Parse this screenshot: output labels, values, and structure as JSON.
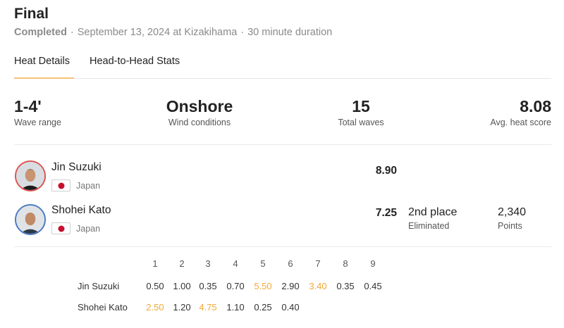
{
  "header": {
    "title": "Final",
    "status": "Completed",
    "separator": "·",
    "date_location": "September 13, 2024 at Kizakihama",
    "duration": "30 minute duration"
  },
  "tabs": [
    {
      "label": "Heat Details",
      "active": true
    },
    {
      "label": "Head-to-Head Stats",
      "active": false
    }
  ],
  "stats": [
    {
      "value": "1-4'",
      "label": "Wave range"
    },
    {
      "value": "Onshore",
      "label": "Wind conditions"
    },
    {
      "value": "15",
      "label": "Total waves"
    },
    {
      "value": "8.08",
      "label": "Avg. heat score"
    }
  ],
  "competitors": [
    {
      "name": "Jin Suzuki",
      "country": "Japan",
      "flag_icon": "japan-flag-icon",
      "score": "8.90",
      "ring_color": "#d9534f"
    },
    {
      "name": "Shohei Kato",
      "country": "Japan",
      "flag_icon": "japan-flag-icon",
      "score": "7.25",
      "place": "2nd place",
      "result": "Eliminated",
      "points": "2,340",
      "points_label": "Points",
      "ring_color": "#4a78c2"
    }
  ],
  "wave_table": {
    "columns": [
      "1",
      "2",
      "3",
      "4",
      "5",
      "6",
      "7",
      "8",
      "9"
    ],
    "highlight_color": "#f2a93b",
    "rows": [
      {
        "name": "Jin Suzuki",
        "scores": [
          "0.50",
          "1.00",
          "0.35",
          "0.70",
          "5.50",
          "2.90",
          "3.40",
          "0.35",
          "0.45"
        ],
        "highlighted": [
          4,
          6
        ]
      },
      {
        "name": "Shohei Kato",
        "scores": [
          "2.50",
          "1.20",
          "4.75",
          "1.10",
          "0.25",
          "0.40"
        ],
        "highlighted": [
          0,
          2
        ]
      }
    ]
  }
}
